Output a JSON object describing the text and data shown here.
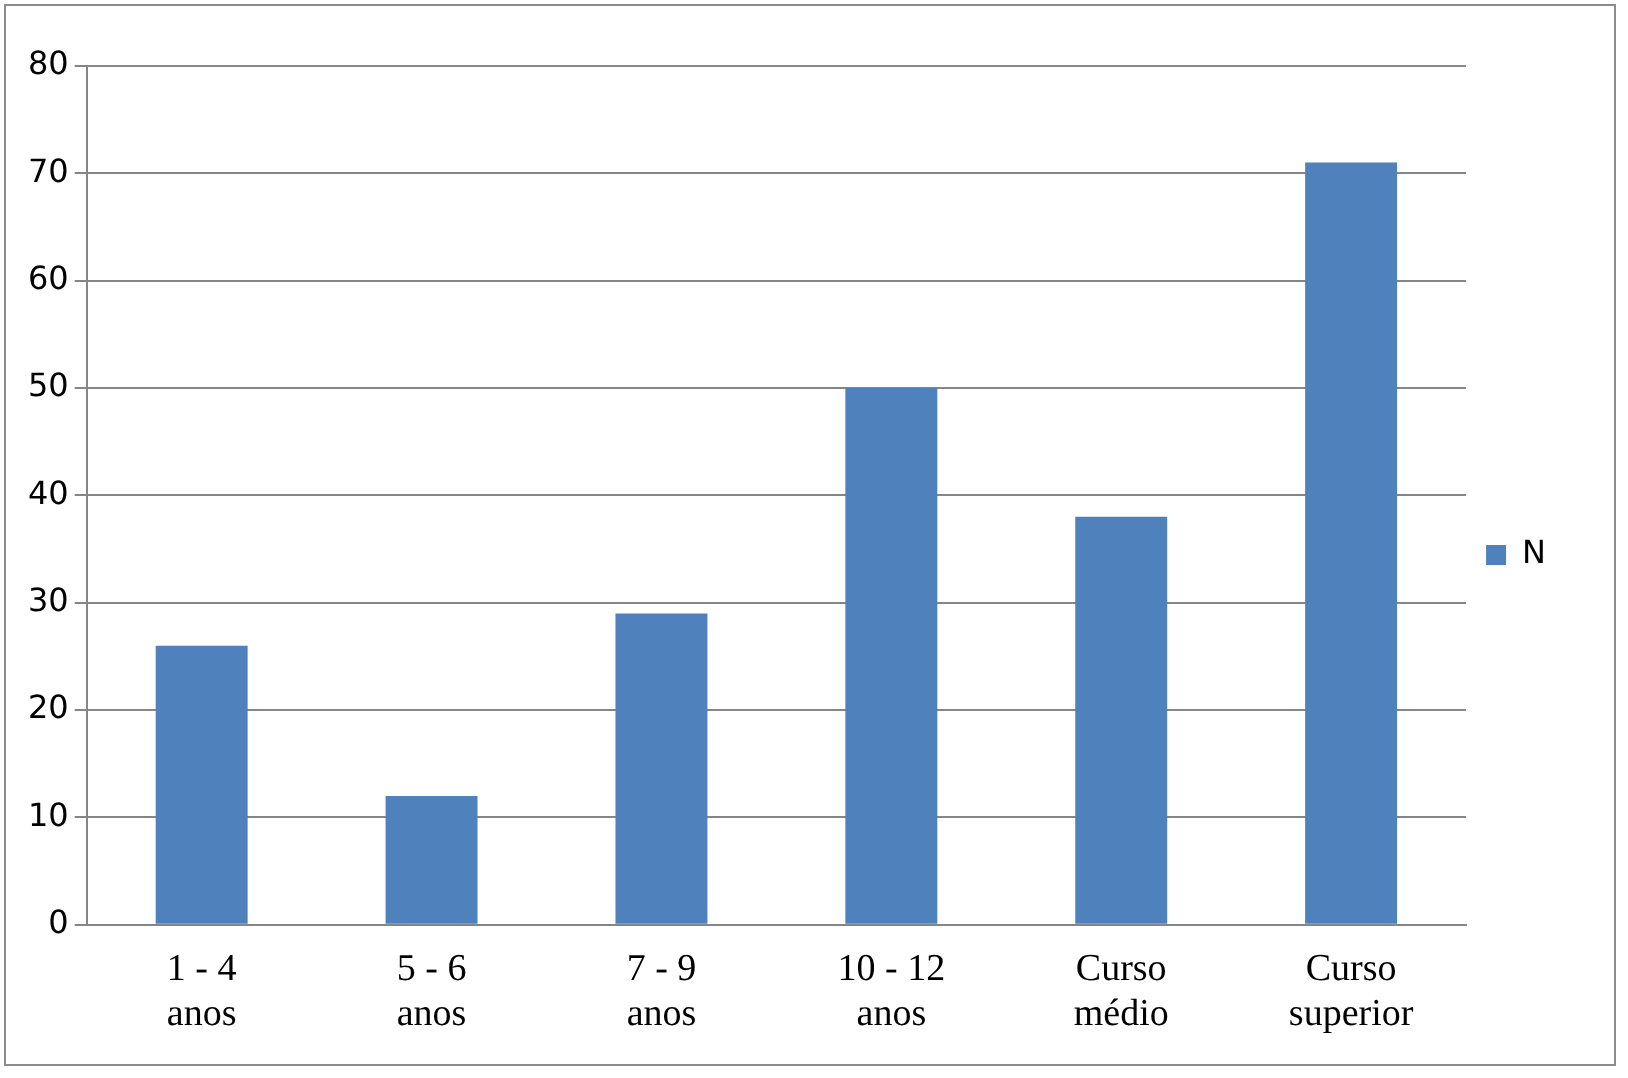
{
  "chart_data": {
    "type": "bar",
    "categories": [
      "1 - 4 anos",
      "5 - 6 anos",
      "7 - 9 anos",
      "10 - 12 anos",
      "Curso médio",
      "Curso superior"
    ],
    "series": [
      {
        "name": "N",
        "color": "#4f81bd",
        "values": [
          26,
          12,
          29,
          50,
          38,
          71
        ]
      }
    ],
    "ylim": [
      0,
      80
    ],
    "yticks": [
      0,
      10,
      20,
      30,
      40,
      50,
      60,
      70,
      80
    ],
    "grid": "y",
    "legend": "right"
  }
}
